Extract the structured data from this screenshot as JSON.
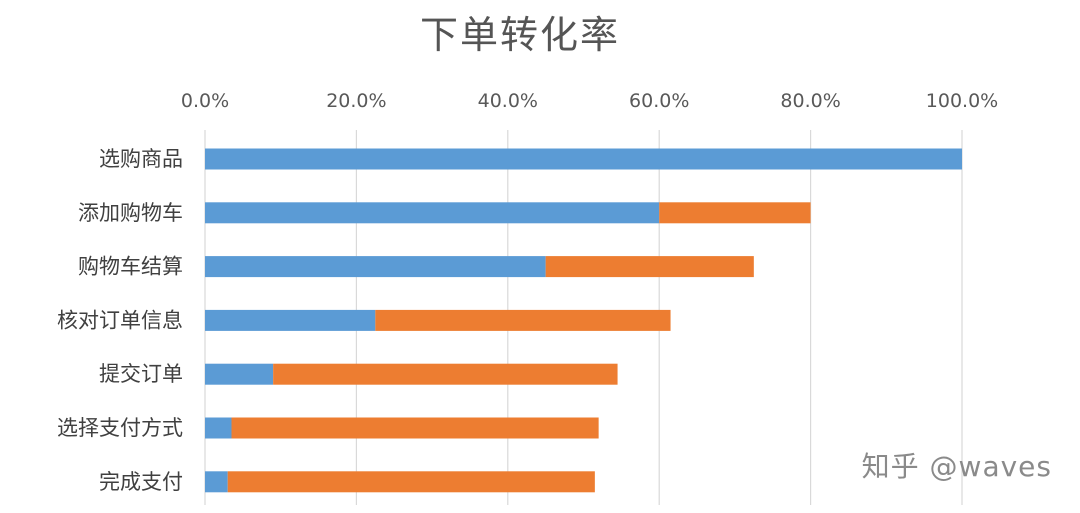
{
  "chart_data": {
    "type": "bar",
    "orientation": "horizontal",
    "stacked": true,
    "title": "下单转化率",
    "xlabel": "",
    "ylabel": "",
    "xlim": [
      0,
      100
    ],
    "x_ticks": [
      "0.0%",
      "20.0%",
      "40.0%",
      "60.0%",
      "80.0%",
      "100.0%"
    ],
    "x_axis_position": "top",
    "grid": true,
    "legend": "none",
    "categories": [
      "选购商品",
      "添加购物车",
      "购物车结算",
      "核对订单信息",
      "提交订单",
      "选择支付方式",
      "完成支付"
    ],
    "series": [
      {
        "values": [
          100,
          60,
          45,
          22.5,
          9,
          3.5,
          3
        ],
        "color": "#5b9bd5"
      },
      {
        "values": [
          0,
          20,
          27.5,
          39,
          45.5,
          48.5,
          48.5
        ],
        "color": "#ed7d31"
      }
    ]
  },
  "watermark": "知乎 @waves"
}
